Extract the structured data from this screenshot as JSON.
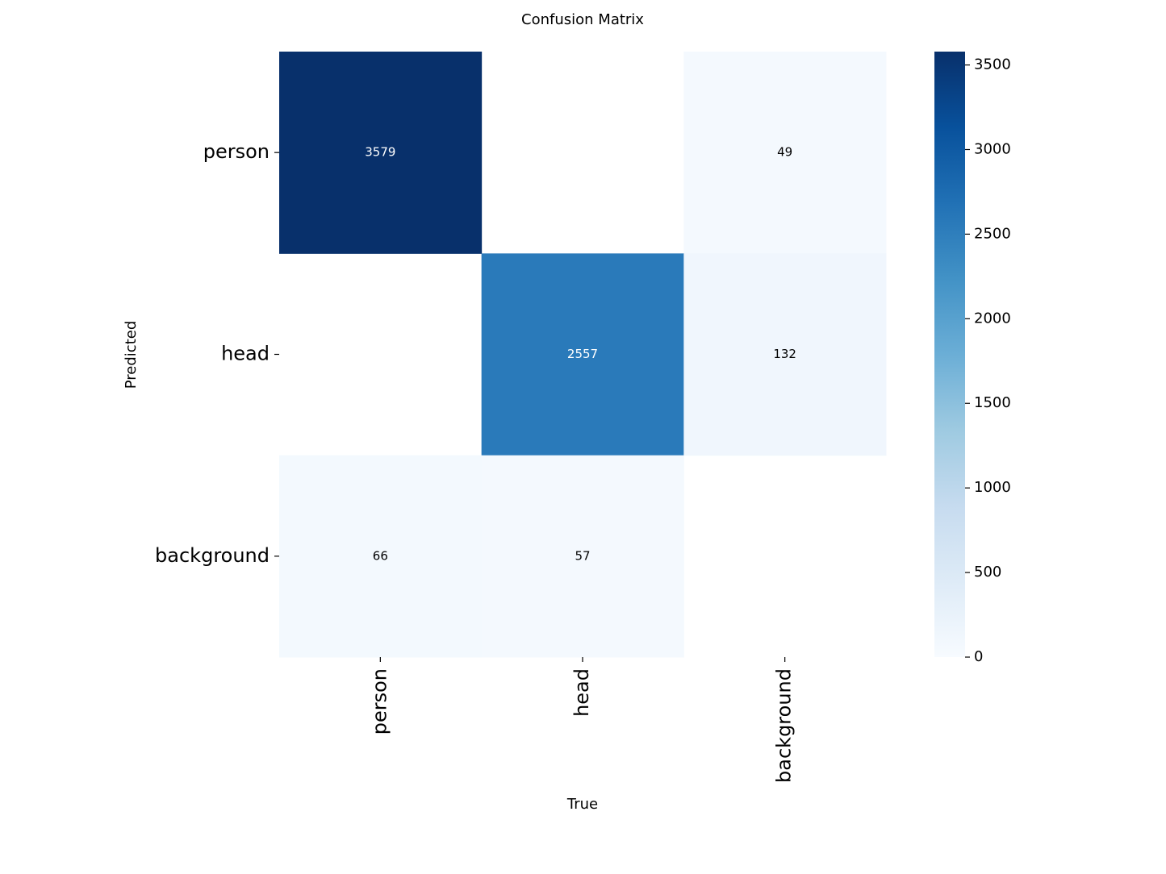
{
  "chart_data": {
    "type": "heatmap",
    "title": "Confusion Matrix",
    "xlabel": "True",
    "ylabel": "Predicted",
    "x_categories": [
      "person",
      "head",
      "background"
    ],
    "y_categories": [
      "person",
      "head",
      "background"
    ],
    "values": [
      [
        3579,
        null,
        49
      ],
      [
        null,
        2557,
        132
      ],
      [
        66,
        57,
        null
      ]
    ],
    "clim": [
      0,
      3579
    ],
    "cticks": [
      0,
      500,
      1000,
      1500,
      2000,
      2500,
      3000,
      3500
    ],
    "colormap": [
      "#f7fbff",
      "#deebf7",
      "#c6dbef",
      "#9ecae1",
      "#6baed6",
      "#4292c6",
      "#2171b5",
      "#08519c",
      "#08306b"
    ]
  }
}
